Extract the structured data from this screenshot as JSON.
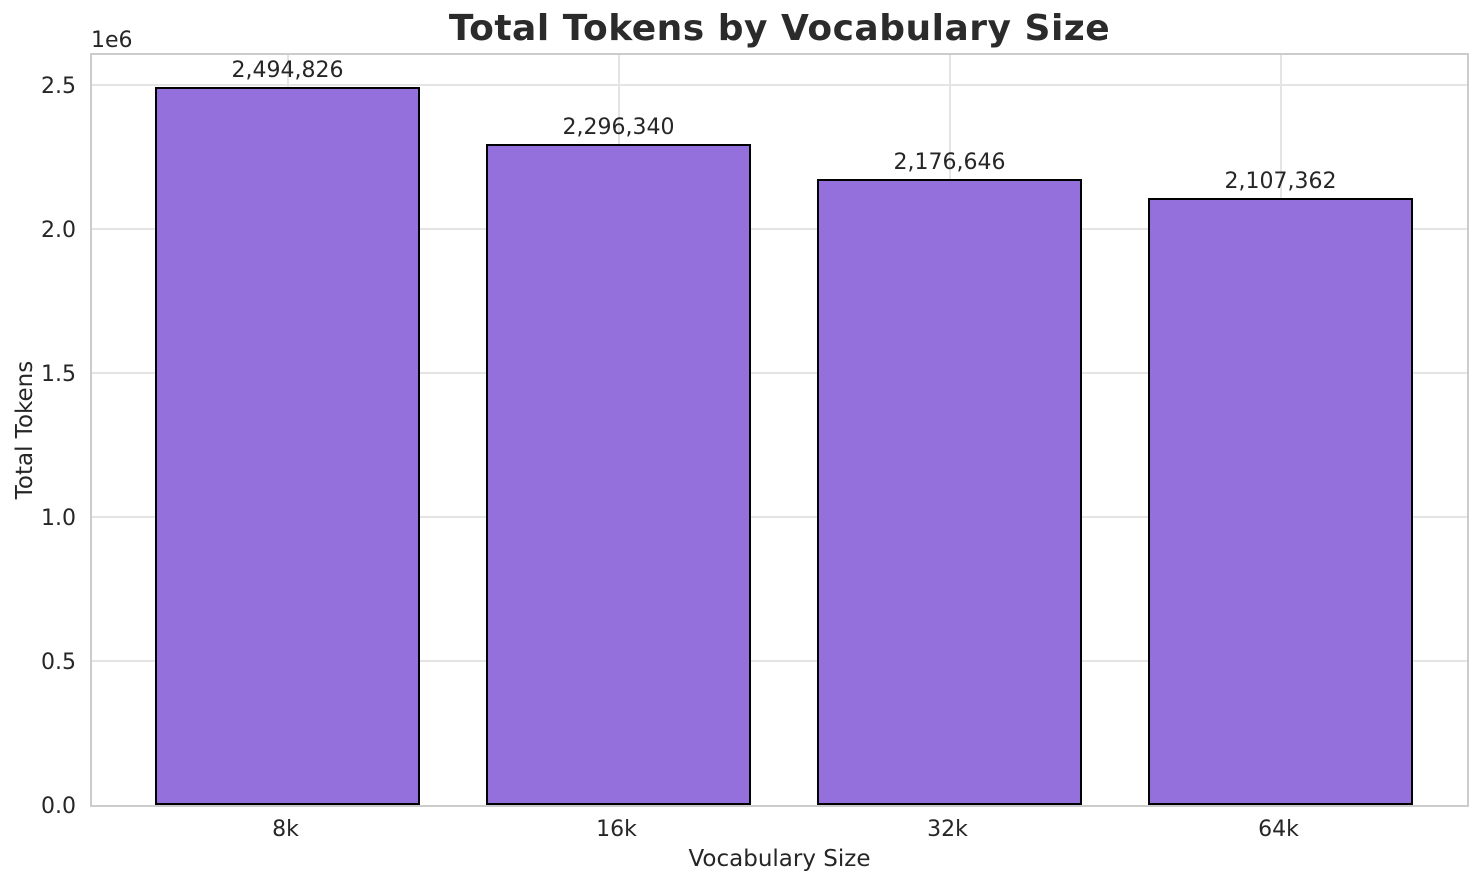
{
  "chart_data": {
    "type": "bar",
    "title": "Total Tokens by Vocabulary Size",
    "xlabel": "Vocabulary Size",
    "ylabel": "Total Tokens",
    "y_offset_text": "1e6",
    "categories": [
      "8k",
      "16k",
      "32k",
      "64k"
    ],
    "values": [
      2494826,
      2296340,
      2176646,
      2107362
    ],
    "bar_labels": [
      "2,494,826",
      "2,296,340",
      "2,176,646",
      "2,107,362"
    ],
    "y_ticks": [
      0.0,
      0.5,
      1.0,
      1.5,
      2.0,
      2.5
    ],
    "y_tick_labels": [
      "0.0",
      "0.5",
      "1.0",
      "1.5",
      "2.0",
      "2.5"
    ],
    "y_tick_unit": 1000000,
    "ylim": [
      0,
      2619567
    ],
    "grid": true,
    "legend_position": "none",
    "colors": {
      "bar_fill": "#9370DB",
      "bar_edge": "#000000",
      "grid": "#e4e4e4",
      "spine": "#cccccc",
      "text": "#262626",
      "background": "#ffffff"
    }
  }
}
